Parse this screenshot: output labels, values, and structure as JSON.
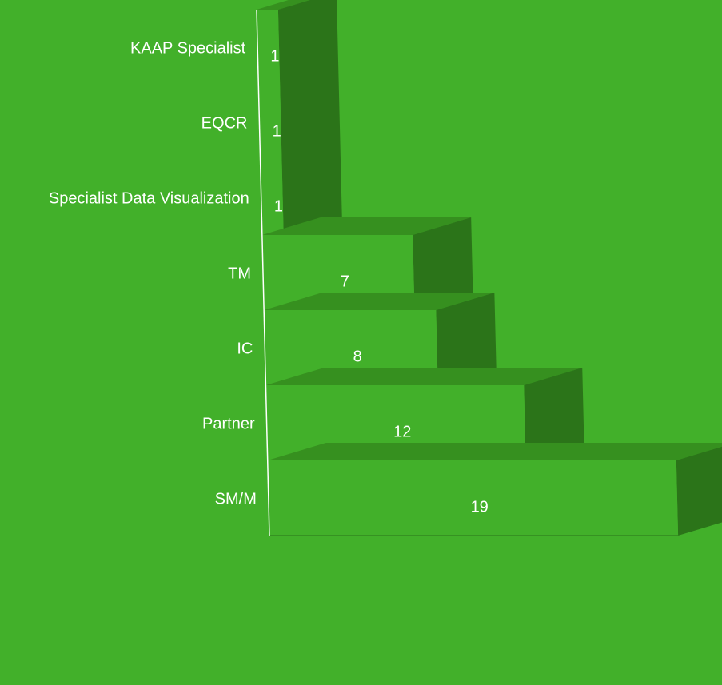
{
  "colors": {
    "background": "#42b02a",
    "bar_front": "#42b02a",
    "bar_top": "#36901f",
    "bar_side": "#2b7419",
    "axis": "#ffffff",
    "text": "#ffffff"
  },
  "chart_data": {
    "type": "bar",
    "orientation": "horizontal",
    "style": "3d-stepped",
    "categories": [
      "KAAP Specialist",
      "EQCR",
      "Specialist Data Visualization",
      "TM",
      "IC",
      "Partner",
      "SM/M"
    ],
    "values": [
      1,
      1,
      1,
      7,
      8,
      12,
      19
    ],
    "data_labels": [
      "1",
      "1",
      "1",
      "7",
      "8",
      "12",
      "19"
    ],
    "xlim": [
      0,
      19
    ],
    "grid": false,
    "legend": "none"
  }
}
